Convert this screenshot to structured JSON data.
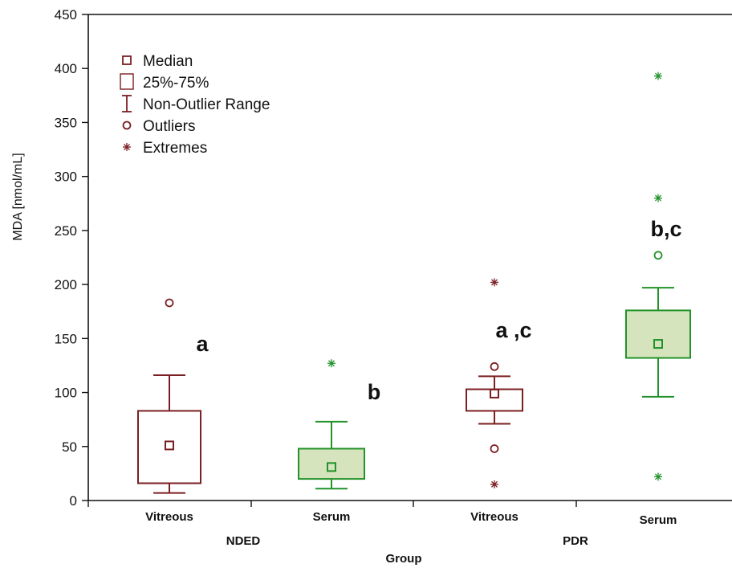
{
  "colors": {
    "vitreous": "#7b1f22",
    "serum": "#22922a",
    "serum_fill": "#d5e4bd",
    "axis": "#111111"
  },
  "chart_data": {
    "type": "box",
    "ylabel": "MDA [nmol/mL]",
    "xlabel": "Group",
    "ylim": [
      0,
      450
    ],
    "yticks": [
      0,
      50,
      100,
      150,
      200,
      250,
      300,
      350,
      400,
      450
    ],
    "groups": [
      "NDED",
      "PDR"
    ],
    "boxes": [
      {
        "group": "NDED",
        "category": "Vitreous",
        "median": 51,
        "q1": 16,
        "q3": 83,
        "whisker_low": 7,
        "whisker_high": 116,
        "outliers": [
          183
        ],
        "extremes": [],
        "annotation": "a",
        "style": "vitreous"
      },
      {
        "group": "NDED",
        "category": "Serum",
        "median": 31,
        "q1": 20,
        "q3": 48,
        "whisker_low": 11,
        "whisker_high": 73,
        "outliers": [],
        "extremes": [
          127
        ],
        "annotation": "b",
        "style": "serum"
      },
      {
        "group": "PDR",
        "category": "Vitreous",
        "median": 99,
        "q1": 83,
        "q3": 103,
        "whisker_low": 71,
        "whisker_high": 115,
        "outliers": [
          124,
          48
        ],
        "extremes": [
          202,
          15
        ],
        "annotation": "a ,c",
        "style": "vitreous"
      },
      {
        "group": "PDR",
        "category": "Serum",
        "median": 145,
        "q1": 132,
        "q3": 176,
        "whisker_low": 96,
        "whisker_high": 197,
        "outliers": [
          227
        ],
        "extremes": [
          393,
          280,
          22
        ],
        "annotation": "b,c",
        "style": "serum"
      }
    ],
    "legend": {
      "position": "top-left",
      "entries": [
        {
          "label": "Median",
          "symbol": "small-square"
        },
        {
          "label": "25%-75%",
          "symbol": "large-square"
        },
        {
          "label": "Non-Outlier Range",
          "symbol": "whisker"
        },
        {
          "label": "Outliers",
          "symbol": "circle"
        },
        {
          "label": "Extremes",
          "symbol": "asterisk"
        }
      ]
    },
    "grid": false
  }
}
